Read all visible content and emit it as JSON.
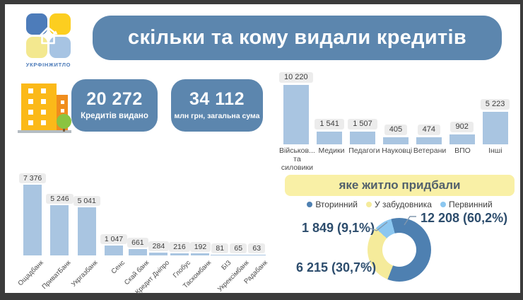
{
  "logo": {
    "text": "УКРФІНЖИТЛО"
  },
  "header": {
    "title": "скільки та кому видали кредитів"
  },
  "kpis": [
    {
      "value": "20 272",
      "label": "Кредитів видано"
    },
    {
      "value": "34 112",
      "label": "млн грн, загальна сума"
    }
  ],
  "colors": {
    "accent_blue": "#5c86ae",
    "bar_fill": "#a9c5e1",
    "value_chip_bg": "#ececec",
    "banner_yellow": "#f9f0a6",
    "donut_blue": "#4e80b1",
    "donut_yellow": "#f5eb9b",
    "donut_light_blue": "#8cc7f0",
    "callout_text": "#2d4d6d"
  },
  "chart_data": [
    {
      "id": "recipients",
      "type": "bar",
      "title": "",
      "categories": [
        "Військов...\nта\nсиловики",
        "Медики",
        "Педагоги",
        "Науковці",
        "Ветерани",
        "ВПО",
        "Інші"
      ],
      "values": [
        10220,
        1541,
        1507,
        405,
        474,
        902,
        5223
      ],
      "value_labels": [
        "10 220",
        "1 541",
        "1 507",
        "405",
        "474",
        "902",
        "5 223"
      ],
      "bar_color": "#a9c5e1",
      "ylim": [
        0,
        10220
      ],
      "grid": false,
      "value_labels_position": "above-bars"
    },
    {
      "id": "banks",
      "type": "bar",
      "title": "",
      "categories": [
        "Ощадбанк",
        "ПриватБанк",
        "Укргазбанк",
        "Сенс",
        "Скай банк",
        "Кредит Дніпро",
        "Глобус",
        "Таскомбанк",
        "БІЗ",
        "Укрексімбанк",
        "Радабанк"
      ],
      "values": [
        7376,
        5246,
        5041,
        1047,
        661,
        284,
        216,
        192,
        81,
        65,
        63
      ],
      "value_labels": [
        "7 376",
        "5 246",
        "5 041",
        "1 047",
        "661",
        "284",
        "216",
        "192",
        "81",
        "65",
        "63"
      ],
      "bar_color": "#a9c5e1",
      "ylim": [
        0,
        7376
      ],
      "grid": false,
      "xlabel_rotation": -45
    },
    {
      "id": "housing",
      "type": "pie",
      "donut": true,
      "title": "яке житло придбали",
      "legend_position": "top",
      "legend": [
        "Вторинний",
        "У забудовника",
        "Первинний"
      ],
      "slices": [
        {
          "label": "Вторинний",
          "value": 12208,
          "pct": 60.2,
          "display": "12 208 (60,2%)",
          "color": "#4e80b1"
        },
        {
          "label": "У забудовника",
          "value": 6215,
          "pct": 30.7,
          "display": "6 215 (30,7%)",
          "color": "#f5eb9b"
        },
        {
          "label": "Первинний",
          "value": 1849,
          "pct": 9.1,
          "display": "1 849 (9,1%)",
          "color": "#8cc7f0"
        }
      ]
    }
  ]
}
